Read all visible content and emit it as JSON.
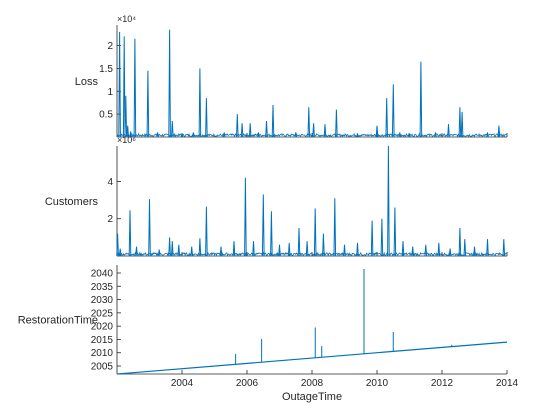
{
  "chart_data": {
    "type": "line",
    "xlabel": "OutageTime",
    "x_range": [
      2002,
      2014
    ],
    "x_ticks": [
      2004,
      2006,
      2008,
      2010,
      2012,
      2014
    ],
    "color": "#0072BD",
    "grid": false,
    "panels": [
      {
        "ylabel": "Loss",
        "exponent": "×10⁴",
        "ylim": [
          0,
          2.45
        ],
        "y_ticks": [
          0.5,
          1,
          1.5,
          2
        ],
        "baseline": 0.04,
        "spikes": [
          {
            "x": 2002.08,
            "y": 2.3
          },
          {
            "x": 2002.22,
            "y": 2.2
          },
          {
            "x": 2002.27,
            "y": 0.9
          },
          {
            "x": 2002.33,
            "y": 0.25
          },
          {
            "x": 2002.42,
            "y": 0.12
          },
          {
            "x": 2002.55,
            "y": 2.15
          },
          {
            "x": 2002.95,
            "y": 1.45
          },
          {
            "x": 2003.25,
            "y": 0.1
          },
          {
            "x": 2003.62,
            "y": 2.35
          },
          {
            "x": 2003.7,
            "y": 0.35
          },
          {
            "x": 2004.0,
            "y": 0.08
          },
          {
            "x": 2004.35,
            "y": 0.1
          },
          {
            "x": 2004.55,
            "y": 1.5
          },
          {
            "x": 2004.75,
            "y": 0.85
          },
          {
            "x": 2005.3,
            "y": 0.1
          },
          {
            "x": 2005.7,
            "y": 0.5
          },
          {
            "x": 2005.85,
            "y": 0.3
          },
          {
            "x": 2006.1,
            "y": 0.3
          },
          {
            "x": 2006.35,
            "y": 0.1
          },
          {
            "x": 2006.6,
            "y": 0.35
          },
          {
            "x": 2006.8,
            "y": 0.7
          },
          {
            "x": 2007.5,
            "y": 0.1
          },
          {
            "x": 2007.9,
            "y": 0.65
          },
          {
            "x": 2008.05,
            "y": 0.3
          },
          {
            "x": 2008.4,
            "y": 0.28
          },
          {
            "x": 2008.75,
            "y": 0.6
          },
          {
            "x": 2009.4,
            "y": 0.08
          },
          {
            "x": 2010.0,
            "y": 0.25
          },
          {
            "x": 2010.3,
            "y": 0.85
          },
          {
            "x": 2010.5,
            "y": 1.15
          },
          {
            "x": 2010.7,
            "y": 0.1
          },
          {
            "x": 2011.0,
            "y": 0.08
          },
          {
            "x": 2011.35,
            "y": 1.65
          },
          {
            "x": 2011.8,
            "y": 0.1
          },
          {
            "x": 2012.2,
            "y": 0.28
          },
          {
            "x": 2012.55,
            "y": 0.65
          },
          {
            "x": 2012.62,
            "y": 0.55
          },
          {
            "x": 2013.4,
            "y": 0.1
          },
          {
            "x": 2013.75,
            "y": 0.25
          }
        ]
      },
      {
        "ylabel": "Customers",
        "exponent": "×10⁶",
        "ylim": [
          0,
          5.9
        ],
        "y_ticks": [
          2,
          4
        ],
        "baseline": 0.1,
        "spikes": [
          {
            "x": 2002.02,
            "y": 1.2
          },
          {
            "x": 2002.1,
            "y": 0.4
          },
          {
            "x": 2002.4,
            "y": 2.45
          },
          {
            "x": 2002.6,
            "y": 0.5
          },
          {
            "x": 2003.0,
            "y": 3.05
          },
          {
            "x": 2003.3,
            "y": 0.35
          },
          {
            "x": 2003.62,
            "y": 1.0
          },
          {
            "x": 2003.7,
            "y": 0.8
          },
          {
            "x": 2003.9,
            "y": 0.6
          },
          {
            "x": 2004.3,
            "y": 0.5
          },
          {
            "x": 2004.55,
            "y": 0.95
          },
          {
            "x": 2004.75,
            "y": 2.65
          },
          {
            "x": 2005.2,
            "y": 0.5
          },
          {
            "x": 2005.6,
            "y": 0.8
          },
          {
            "x": 2005.95,
            "y": 4.2
          },
          {
            "x": 2006.2,
            "y": 0.8
          },
          {
            "x": 2006.5,
            "y": 3.3
          },
          {
            "x": 2006.75,
            "y": 2.4
          },
          {
            "x": 2007.0,
            "y": 0.6
          },
          {
            "x": 2007.3,
            "y": 0.7
          },
          {
            "x": 2007.6,
            "y": 1.5
          },
          {
            "x": 2007.85,
            "y": 0.8
          },
          {
            "x": 2008.1,
            "y": 2.55
          },
          {
            "x": 2008.35,
            "y": 1.2
          },
          {
            "x": 2008.7,
            "y": 3.1
          },
          {
            "x": 2009.0,
            "y": 0.6
          },
          {
            "x": 2009.4,
            "y": 0.7
          },
          {
            "x": 2009.85,
            "y": 1.9
          },
          {
            "x": 2010.15,
            "y": 2.0
          },
          {
            "x": 2010.35,
            "y": 5.9
          },
          {
            "x": 2010.55,
            "y": 2.6
          },
          {
            "x": 2010.8,
            "y": 0.8
          },
          {
            "x": 2011.1,
            "y": 0.5
          },
          {
            "x": 2011.5,
            "y": 0.6
          },
          {
            "x": 2011.9,
            "y": 0.7
          },
          {
            "x": 2012.25,
            "y": 0.4
          },
          {
            "x": 2012.55,
            "y": 1.5
          },
          {
            "x": 2012.7,
            "y": 0.9
          },
          {
            "x": 2013.0,
            "y": 0.5
          },
          {
            "x": 2013.4,
            "y": 0.9
          },
          {
            "x": 2013.9,
            "y": 0.9
          }
        ]
      },
      {
        "ylabel": "RestorationTime",
        "exponent": "",
        "ylim": [
          2002,
          2043
        ],
        "y_ticks": [
          2005,
          2010,
          2015,
          2020,
          2025,
          2030,
          2035,
          2040
        ],
        "trend": {
          "start": 2002,
          "end": 2014
        },
        "spikes": [
          {
            "x": 2005.65,
            "y": 2009.5
          },
          {
            "x": 2006.45,
            "y": 2015.2
          },
          {
            "x": 2008.1,
            "y": 2019.5
          },
          {
            "x": 2008.3,
            "y": 2012.5
          },
          {
            "x": 2009.6,
            "y": 2041.5
          },
          {
            "x": 2010.5,
            "y": 2017.8
          },
          {
            "x": 2012.3,
            "y": 2013.0
          }
        ]
      }
    ]
  }
}
